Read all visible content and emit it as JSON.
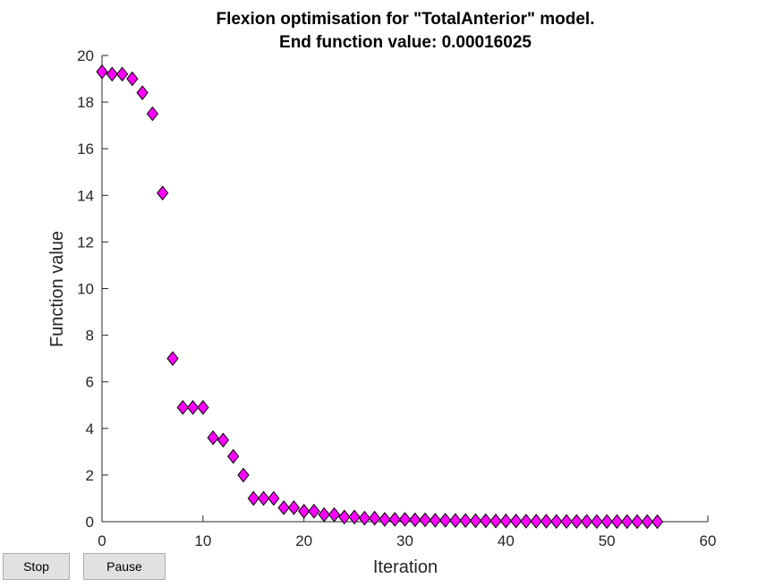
{
  "chart_data": {
    "type": "scatter",
    "title": "Flexion optimisation for \"TotalAnterior\" model.",
    "subtitle": "End function value: 0.00016025",
    "xlabel": "Iteration",
    "ylabel": "Function value",
    "xlim": [
      0,
      60
    ],
    "ylim": [
      0,
      20
    ],
    "xticks": [
      0,
      10,
      20,
      30,
      40,
      50,
      60
    ],
    "yticks": [
      0,
      2,
      4,
      6,
      8,
      10,
      12,
      14,
      16,
      18,
      20
    ],
    "grid": false,
    "marker": "diamond",
    "marker_color": "#ff00ff",
    "marker_edge_color": "#000000",
    "series": [
      {
        "x": [
          0,
          1,
          2,
          3,
          4,
          5,
          6,
          7,
          8,
          9,
          10,
          11,
          12,
          13,
          14,
          15,
          16,
          17,
          18,
          19,
          20,
          21,
          22,
          23,
          24,
          25,
          26,
          27,
          28,
          29,
          30,
          31,
          32,
          33,
          34,
          35,
          36,
          37,
          38,
          39,
          40,
          41,
          42,
          43,
          44,
          45,
          46,
          47,
          48,
          49,
          50,
          51,
          52,
          53,
          54,
          55
        ],
        "y": [
          19.3,
          19.2,
          19.2,
          19.0,
          18.4,
          17.5,
          14.1,
          7.0,
          4.9,
          4.9,
          4.9,
          3.6,
          3.5,
          2.8,
          2.0,
          1.0,
          1.0,
          1.0,
          0.6,
          0.6,
          0.45,
          0.45,
          0.3,
          0.3,
          0.2,
          0.2,
          0.15,
          0.15,
          0.1,
          0.1,
          0.1,
          0.08,
          0.08,
          0.06,
          0.06,
          0.05,
          0.05,
          0.04,
          0.04,
          0.03,
          0.03,
          0.03,
          0.02,
          0.02,
          0.02,
          0.01,
          0.01,
          0.01,
          0.01,
          0.005,
          0.005,
          0.005,
          0.003,
          0.002,
          0.001,
          0.00016025
        ]
      }
    ]
  },
  "controls": {
    "stop_label": "Stop",
    "pause_label": "Pause"
  }
}
